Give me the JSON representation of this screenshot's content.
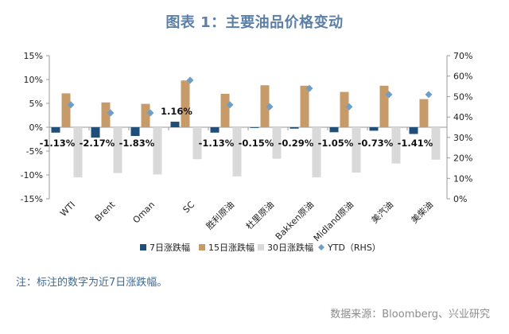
{
  "title": "图表 1：主要油品价格变动",
  "note": "注：标注的数字为近7日涨跌幅。",
  "source": "数据来源：Bloomberg、兴业研究",
  "colors": {
    "s7": "#1f4e79",
    "s15": "#c79a6a",
    "s30": "#d9d9d9",
    "ytd": "#6f9fc8",
    "axis": "#999999",
    "text": "#222222"
  },
  "chart_data": {
    "type": "bar",
    "categories": [
      "WTI",
      "Brent",
      "Oman",
      "SC",
      "胜利原油",
      "杜里原油",
      "Bakken原油",
      "Midland原油",
      "美汽油",
      "美柴油"
    ],
    "series": [
      {
        "name": "7日涨跌幅",
        "axis": "left",
        "type": "bar",
        "color": "#1f4e79",
        "values": [
          -1.13,
          -2.17,
          -1.83,
          1.16,
          -1.13,
          -0.15,
          -0.29,
          -1.05,
          -0.73,
          -1.41
        ]
      },
      {
        "name": "15日涨跌幅",
        "axis": "left",
        "type": "bar",
        "color": "#c79a6a",
        "values": [
          7.1,
          5.2,
          4.9,
          9.8,
          7.0,
          8.8,
          8.7,
          7.4,
          8.7,
          5.9
        ]
      },
      {
        "name": "30日涨跌幅",
        "axis": "left",
        "type": "bar",
        "color": "#d9d9d9",
        "values": [
          -10.5,
          -9.6,
          -9.9,
          -6.7,
          -10.3,
          -6.6,
          -10.5,
          -9.5,
          -7.6,
          -6.8
        ]
      },
      {
        "name": "YTD（RHS）",
        "axis": "right",
        "type": "scatter",
        "color": "#6f9fc8",
        "values": [
          46,
          42,
          42,
          58,
          46,
          45,
          54,
          45,
          51,
          51
        ]
      }
    ],
    "data_labels": [
      "-1.13%",
      "-2.17%",
      "-1.83%",
      "1.16%",
      "-1.13%",
      "-0.15%",
      "-0.29%",
      "-1.05%",
      "-0.73%",
      "-1.41%"
    ],
    "ylim_left": [
      -15,
      15
    ],
    "yticks_left": [
      "15%",
      "10%",
      "5%",
      "0%",
      "-5%",
      "-10%",
      "-15%"
    ],
    "ylim_right": [
      0,
      70
    ],
    "yticks_right": [
      "70%",
      "60%",
      "50%",
      "40%",
      "30%",
      "20%",
      "10%",
      "0%"
    ],
    "grid": false,
    "legend_position": "bottom"
  }
}
